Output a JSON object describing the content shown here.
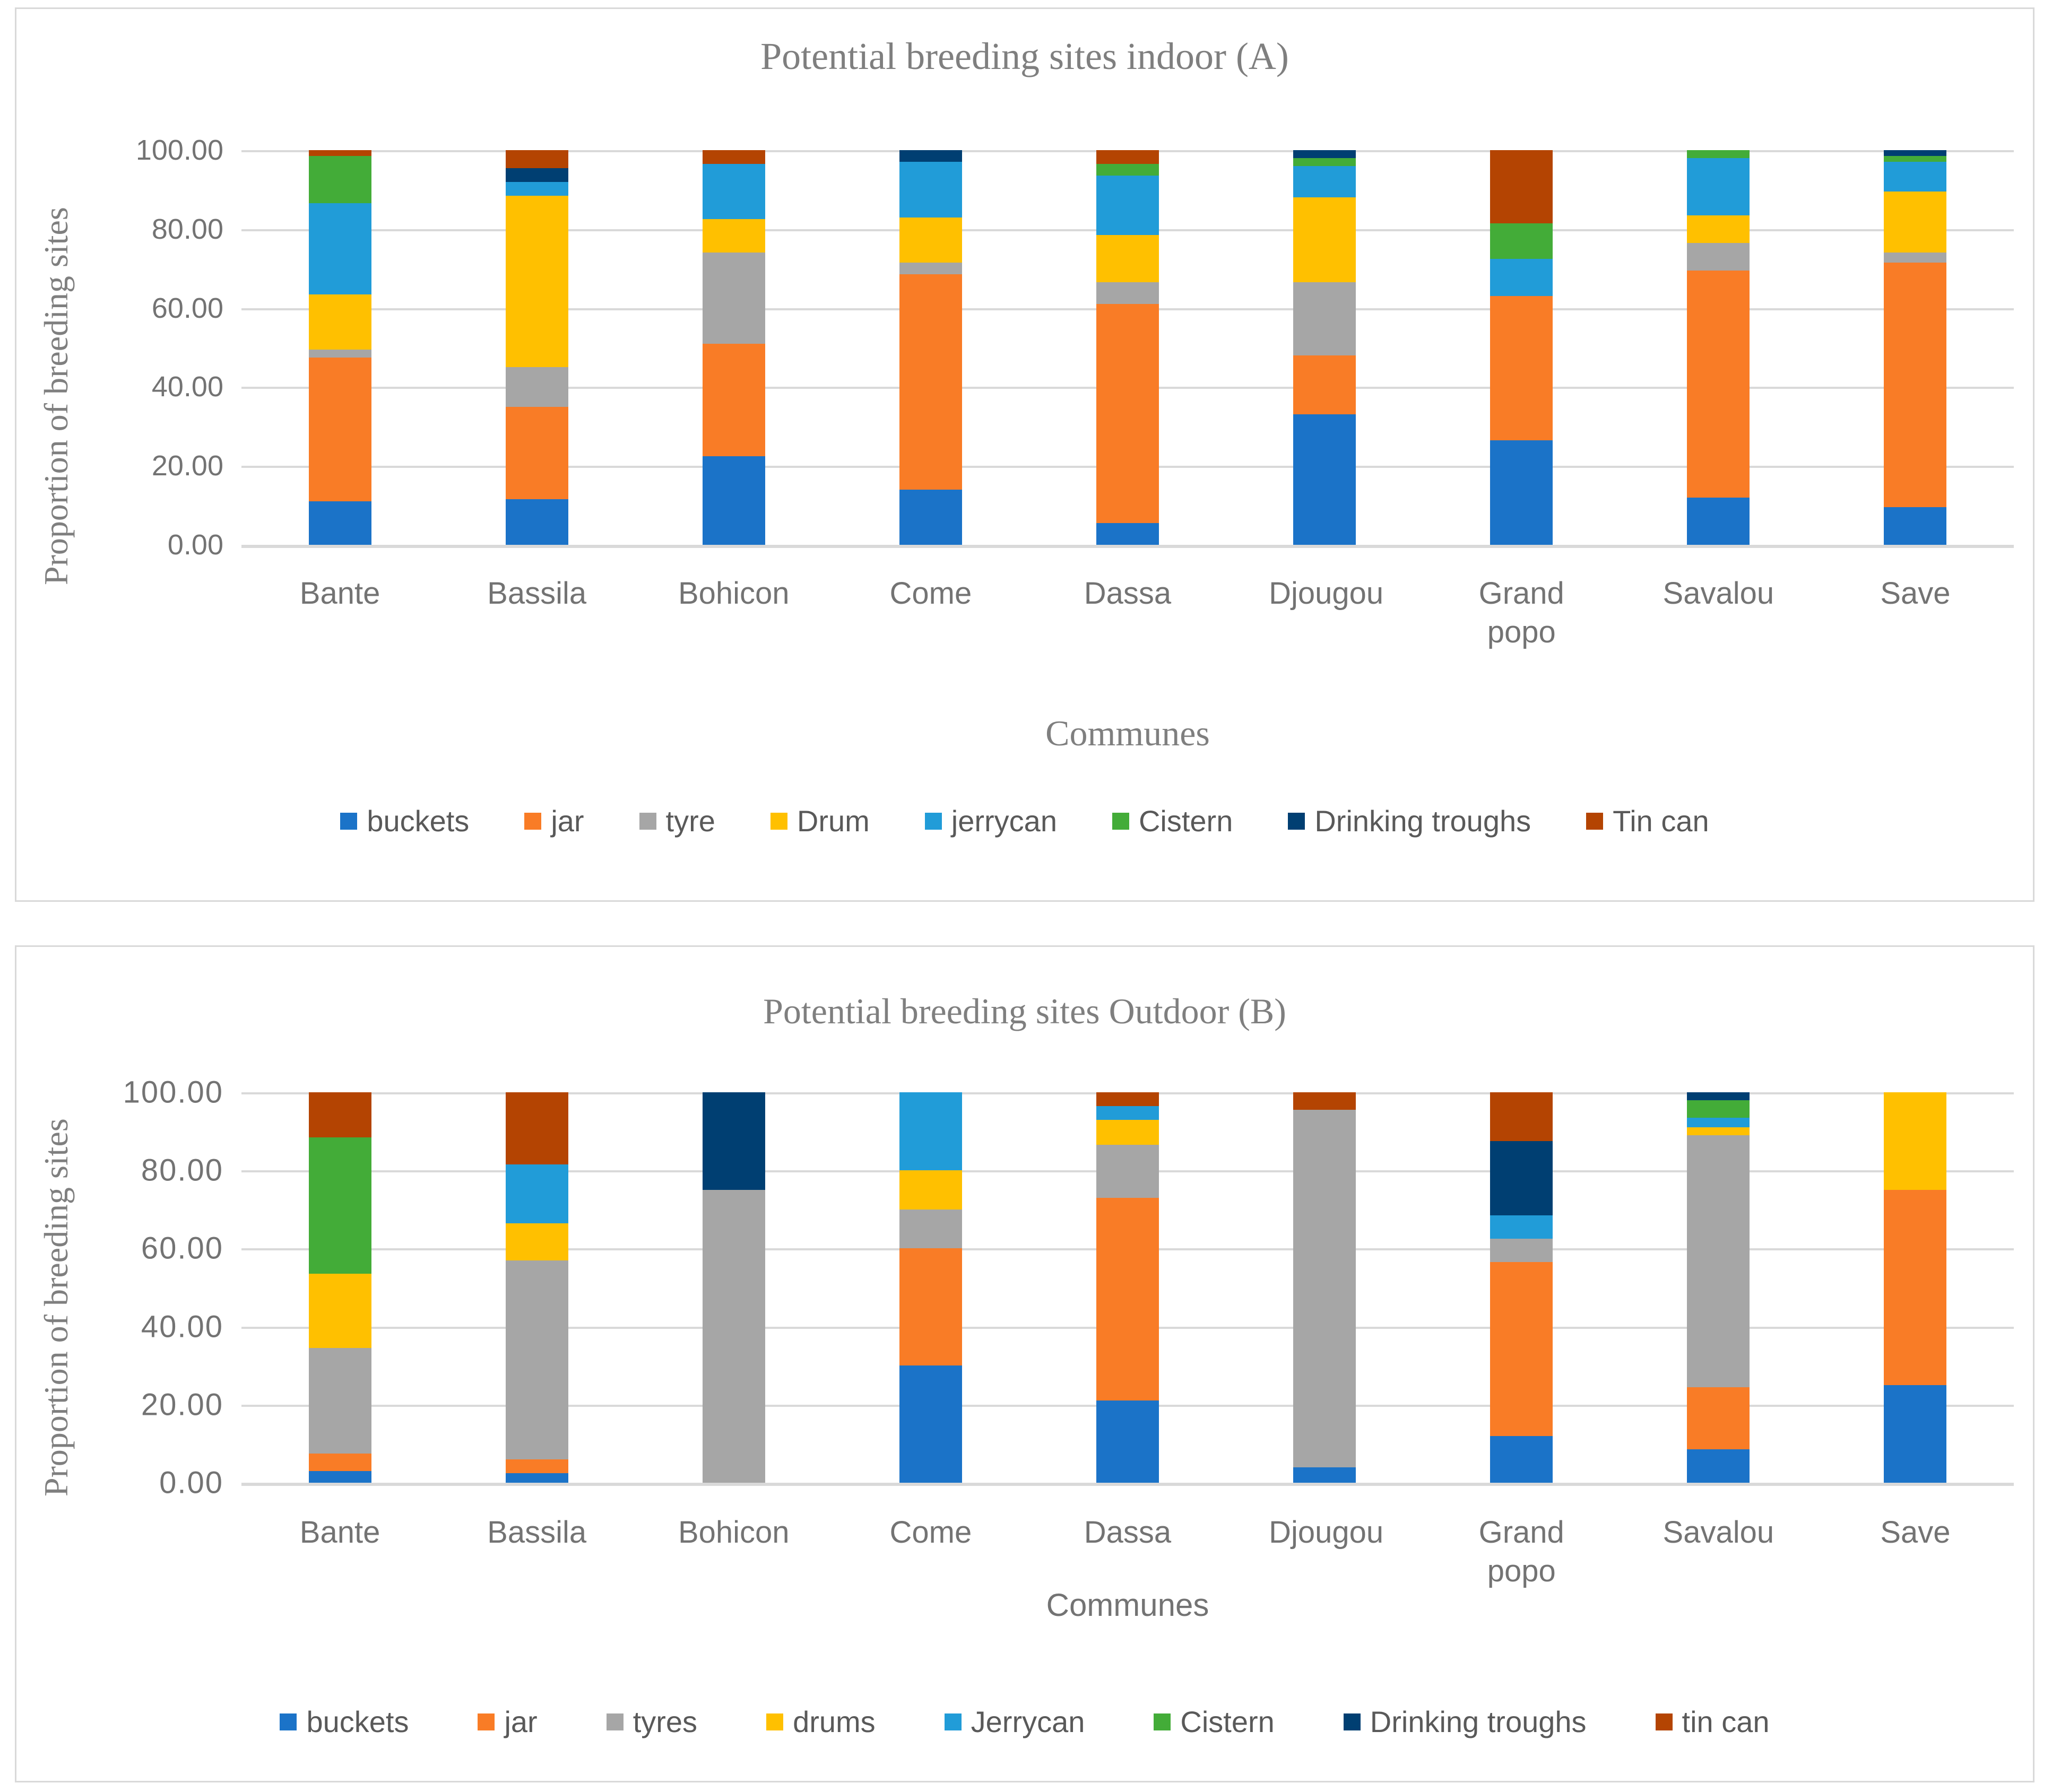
{
  "style": {
    "grid_color": "#D9D9D9",
    "title_color": "#7F7F7F",
    "tick_color": "#737373",
    "legend_text_color": "#595959",
    "background": "#FFFFFF"
  },
  "chart_data": [
    {
      "type": "bar",
      "stacked": true,
      "title": "Potential breeding sites indoor (A)",
      "xlabel": "Communes",
      "ylabel": "Proportion of breeding sites",
      "ylim": [
        0,
        100
      ],
      "grid": true,
      "legend_position": "bottom",
      "yticks": [
        "100.00",
        "80.00",
        "60.00",
        "40.00",
        "20.00",
        "0.00"
      ],
      "categories": [
        "Bante",
        "Bassila",
        "Bohicon",
        "Come",
        "Dassa",
        "Djougou",
        "Grand popo",
        "Savalou",
        "Save"
      ],
      "series": [
        {
          "name": "buckets",
          "color": "#1B73C8",
          "values": [
            11,
            11.5,
            22.5,
            14,
            5.5,
            33,
            26.5,
            12,
            9.5
          ]
        },
        {
          "name": "jar",
          "color": "#F97C26",
          "values": [
            36.5,
            23.5,
            28.5,
            54.5,
            55.5,
            15,
            36.5,
            57.5,
            62
          ]
        },
        {
          "name": "tyre",
          "color": "#A6A6A6",
          "values": [
            2,
            10,
            23,
            3,
            5.5,
            18.5,
            0,
            7,
            2.5
          ]
        },
        {
          "name": "Drum",
          "color": "#FFC000",
          "values": [
            14,
            43.5,
            8.5,
            11.5,
            12,
            21.5,
            0,
            7,
            15.5
          ]
        },
        {
          "name": "jerrycan",
          "color": "#219CD8",
          "values": [
            23,
            3.5,
            14,
            14,
            15,
            8,
            9.5,
            14.5,
            7.5
          ]
        },
        {
          "name": "Cistern",
          "color": "#43AC38",
          "values": [
            12,
            0,
            0,
            0,
            3,
            2,
            9,
            2,
            1.5
          ]
        },
        {
          "name": "Drinking troughs",
          "color": "#003F72",
          "values": [
            0,
            3.5,
            0,
            3,
            0,
            2,
            0,
            0,
            1.5
          ]
        },
        {
          "name": "Tin can",
          "color": "#B44402",
          "values": [
            1.5,
            4.5,
            3.5,
            0,
            3.5,
            0,
            18.5,
            0,
            0
          ]
        }
      ]
    },
    {
      "type": "bar",
      "stacked": true,
      "title": "Potential breeding sites  Outdoor (B)",
      "xlabel": "Communes",
      "ylabel": "Proportion of breeding sites",
      "ylim": [
        0,
        100
      ],
      "grid": true,
      "legend_position": "bottom",
      "yticks": [
        "100.00",
        "80.00",
        "60.00",
        "40.00",
        "20.00",
        "0.00"
      ],
      "categories": [
        "Bante",
        "Bassila",
        "Bohicon",
        "Come",
        "Dassa",
        "Djougou",
        "Grand popo",
        "Savalou",
        "Save"
      ],
      "series": [
        {
          "name": "buckets",
          "color": "#1B73C8",
          "values": [
            3,
            2.5,
            0,
            30,
            21,
            4,
            12,
            8.5,
            25
          ]
        },
        {
          "name": "jar",
          "color": "#F97C26",
          "values": [
            4.5,
            3.5,
            0,
            30,
            52,
            0,
            44.5,
            16,
            50
          ]
        },
        {
          "name": "tyres",
          "color": "#A6A6A6",
          "values": [
            27,
            51,
            75,
            10,
            13.5,
            91.5,
            6,
            64.5,
            0
          ]
        },
        {
          "name": "drums",
          "color": "#FFC000",
          "values": [
            19,
            9.5,
            0,
            10,
            6.5,
            0,
            0,
            2,
            25
          ]
        },
        {
          "name": "Jerrycan",
          "color": "#219CD8",
          "values": [
            0,
            15,
            0,
            20,
            3.5,
            0,
            6,
            2.5,
            0
          ]
        },
        {
          "name": "Cistern",
          "color": "#43AC38",
          "values": [
            35,
            0,
            0,
            0,
            0,
            0,
            0,
            4.5,
            0
          ]
        },
        {
          "name": "Drinking troughs",
          "color": "#003F72",
          "values": [
            0,
            0,
            25,
            0,
            0,
            0,
            19,
            2,
            0
          ]
        },
        {
          "name": "tin can",
          "color": "#B44402",
          "values": [
            11.5,
            18.5,
            0,
            0,
            3.5,
            4.5,
            12.5,
            0,
            0
          ]
        }
      ]
    }
  ]
}
